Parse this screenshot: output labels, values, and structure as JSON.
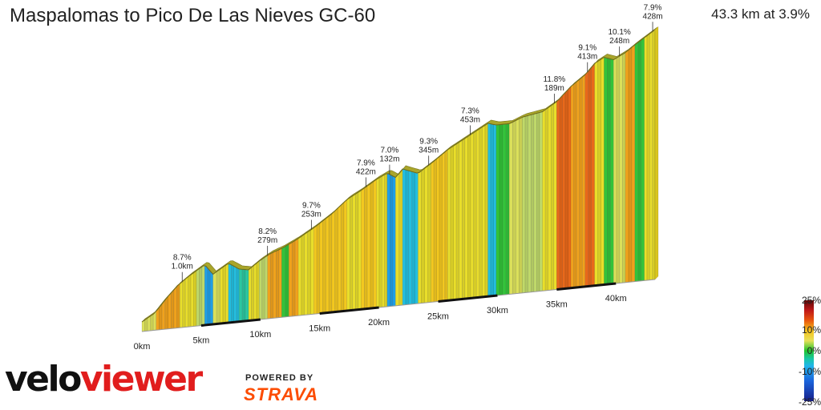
{
  "header": {
    "title": "Maspalomas to Pico De Las Nieves GC-60",
    "summary": "43.3 km at 3.9%"
  },
  "branding": {
    "logo_velo": "velo",
    "logo_viewer": "viewer",
    "powered_by": "POWERED BY",
    "strava": "STRAVA"
  },
  "legend": {
    "labels": [
      "25%",
      "10%",
      "0%",
      "-10%",
      "-25%"
    ],
    "colors": [
      "#5c0808",
      "#c01818",
      "#e8560e",
      "#f6c21a",
      "#e6e05a",
      "#1fc32c",
      "#17c7a5",
      "#21b5ea",
      "#1b64dc",
      "#171e88"
    ]
  },
  "chart_data": {
    "type": "area",
    "title": "Maspalomas to Pico De Las Nieves GC-60",
    "subtitle": "43.3 km at 3.9%",
    "xlabel": "",
    "ylabel": "",
    "x_unit": "km",
    "xlim": [
      0,
      43.3
    ],
    "x_ticks": [
      "0km",
      "5km",
      "10km",
      "15km",
      "20km",
      "25km",
      "30km",
      "35km",
      "40km"
    ],
    "series": [
      {
        "values_relative_elevation_m": [
          [
            0,
            0
          ],
          [
            1.0,
            40
          ],
          [
            2.0,
            120
          ],
          [
            3.0,
            190
          ],
          [
            4.0,
            240
          ],
          [
            5.3,
            295
          ],
          [
            6.0,
            235
          ],
          [
            7.3,
            290
          ],
          [
            8.2,
            250
          ],
          [
            9.0,
            240
          ],
          [
            9.9,
            285
          ],
          [
            10.8,
            320
          ],
          [
            11.8,
            345
          ],
          [
            13.0,
            385
          ],
          [
            14.5,
            445
          ],
          [
            16.0,
            515
          ],
          [
            17.3,
            590
          ],
          [
            18.5,
            635
          ],
          [
            19.8,
            690
          ],
          [
            20.7,
            720
          ],
          [
            21.4,
            690
          ],
          [
            22.0,
            735
          ],
          [
            23.3,
            700
          ],
          [
            24.4,
            750
          ],
          [
            25.8,
            820
          ],
          [
            27.5,
            885
          ],
          [
            29.2,
            950
          ],
          [
            29.9,
            935
          ],
          [
            31.0,
            935
          ],
          [
            32.1,
            965
          ],
          [
            33.8,
            985
          ],
          [
            35.0,
            1035
          ],
          [
            36.2,
            1115
          ],
          [
            37.4,
            1175
          ],
          [
            38.2,
            1235
          ],
          [
            39.0,
            1265
          ],
          [
            39.8,
            1245
          ],
          [
            40.8,
            1280
          ],
          [
            41.6,
            1320
          ],
          [
            42.4,
            1355
          ],
          [
            43.3,
            1395
          ]
        ]
      }
    ],
    "annotations": [
      {
        "km": 3.4,
        "text1": "8.7%",
        "text2": "1.0km"
      },
      {
        "km": 10.6,
        "text1": "8.2%",
        "text2": "279m"
      },
      {
        "km": 14.3,
        "text1": "9.7%",
        "text2": "253m"
      },
      {
        "km": 18.9,
        "text1": "7.9%",
        "text2": "422m"
      },
      {
        "km": 20.9,
        "text1": "7.0%",
        "text2": "132m"
      },
      {
        "km": 24.2,
        "text1": "9.3%",
        "text2": "345m"
      },
      {
        "km": 27.7,
        "text1": "7.3%",
        "text2": "453m"
      },
      {
        "km": 34.8,
        "text1": "11.8%",
        "text2": "189m"
      },
      {
        "km": 37.6,
        "text1": "9.1%",
        "text2": "413m"
      },
      {
        "km": 40.3,
        "text1": "10.1%",
        "text2": "248m"
      },
      {
        "km": 43.1,
        "text1": "7.9%",
        "text2": "428m"
      }
    ],
    "gradient_segments": [
      {
        "from": 0,
        "to": 1.2,
        "grade": 3
      },
      {
        "from": 1.2,
        "to": 3.2,
        "grade": 7
      },
      {
        "from": 3.2,
        "to": 4.6,
        "grade": 5
      },
      {
        "from": 4.6,
        "to": 5.3,
        "grade": 2
      },
      {
        "from": 5.3,
        "to": 6.0,
        "grade": -9
      },
      {
        "from": 6.0,
        "to": 6.6,
        "grade": 3
      },
      {
        "from": 6.6,
        "to": 7.3,
        "grade": 4
      },
      {
        "from": 7.3,
        "to": 8.2,
        "grade": -6
      },
      {
        "from": 8.2,
        "to": 9.0,
        "grade": -2
      },
      {
        "from": 9.0,
        "to": 9.9,
        "grade": 4
      },
      {
        "from": 9.9,
        "to": 10.6,
        "grade": 1
      },
      {
        "from": 10.6,
        "to": 11.8,
        "grade": 7
      },
      {
        "from": 11.8,
        "to": 12.4,
        "grade": 0
      },
      {
        "from": 12.4,
        "to": 13.2,
        "grade": 8
      },
      {
        "from": 13.2,
        "to": 14.5,
        "grade": 5
      },
      {
        "from": 14.5,
        "to": 17.3,
        "grade": 6
      },
      {
        "from": 17.3,
        "to": 18.5,
        "grade": 5
      },
      {
        "from": 18.5,
        "to": 19.8,
        "grade": 6
      },
      {
        "from": 19.8,
        "to": 20.7,
        "grade": 4
      },
      {
        "from": 20.7,
        "to": 21.4,
        "grade": -7
      },
      {
        "from": 21.4,
        "to": 22.0,
        "grade": 5
      },
      {
        "from": 22.0,
        "to": 23.3,
        "grade": -5
      },
      {
        "from": 23.3,
        "to": 24.4,
        "grade": 5
      },
      {
        "from": 24.4,
        "to": 25.8,
        "grade": 6
      },
      {
        "from": 25.8,
        "to": 29.2,
        "grade": 5
      },
      {
        "from": 29.2,
        "to": 29.9,
        "grade": -4
      },
      {
        "from": 29.9,
        "to": 31.0,
        "grade": 0
      },
      {
        "from": 31.0,
        "to": 32.1,
        "grade": 3
      },
      {
        "from": 32.1,
        "to": 33.8,
        "grade": 1
      },
      {
        "from": 33.8,
        "to": 35.0,
        "grade": 4
      },
      {
        "from": 35.0,
        "to": 36.2,
        "grade": 9
      },
      {
        "from": 36.2,
        "to": 37.4,
        "grade": 7
      },
      {
        "from": 37.4,
        "to": 38.2,
        "grade": 9
      },
      {
        "from": 38.2,
        "to": 39.0,
        "grade": 4
      },
      {
        "from": 39.0,
        "to": 39.8,
        "grade": -1
      },
      {
        "from": 39.8,
        "to": 40.8,
        "grade": 3
      },
      {
        "from": 40.8,
        "to": 41.6,
        "grade": 8
      },
      {
        "from": 41.6,
        "to": 42.4,
        "grade": 0
      },
      {
        "from": 42.4,
        "to": 43.3,
        "grade": 5
      }
    ]
  }
}
